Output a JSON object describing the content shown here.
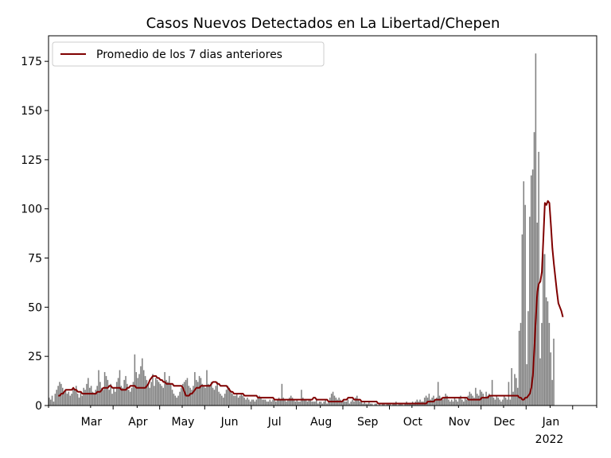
{
  "chart_data": {
    "type": "bar",
    "title": "Casos Nuevos Detectados en La Libertad/Chepen",
    "xlabel": "",
    "ylabel": "",
    "x_range": [
      "2021-02-01",
      "2022-01-31"
    ],
    "ylim": [
      0,
      188
    ],
    "y_ticks": [
      0,
      25,
      50,
      75,
      100,
      125,
      150,
      175
    ],
    "x_ticks": [
      {
        "date": "2021-03-01",
        "label": "Mar"
      },
      {
        "date": "2021-04-01",
        "label": "Apr"
      },
      {
        "date": "2021-05-01",
        "label": "May"
      },
      {
        "date": "2021-06-01",
        "label": "Jun"
      },
      {
        "date": "2021-07-01",
        "label": "Jul"
      },
      {
        "date": "2021-08-01",
        "label": "Aug"
      },
      {
        "date": "2021-09-01",
        "label": "Sep"
      },
      {
        "date": "2021-10-01",
        "label": "Oct"
      },
      {
        "date": "2021-11-01",
        "label": "Nov"
      },
      {
        "date": "2021-12-01",
        "label": "Dec"
      },
      {
        "date": "2022-01-01",
        "label": "Jan",
        "sublabel": "2022"
      }
    ],
    "grid": false,
    "legend_position": "top-left",
    "bar_series": {
      "color": "#808080",
      "start_date": "2021-02-01",
      "values": [
        4,
        3,
        5,
        2,
        6,
        8,
        10,
        12,
        11,
        9,
        7,
        8,
        6,
        7,
        5,
        6,
        9,
        8,
        10,
        6,
        4,
        7,
        5,
        9,
        8,
        11,
        14,
        9,
        10,
        7,
        6,
        8,
        10,
        18,
        12,
        9,
        8,
        17,
        15,
        13,
        8,
        11,
        6,
        9,
        7,
        12,
        14,
        18,
        10,
        9,
        13,
        15,
        11,
        8,
        7,
        9,
        12,
        26,
        17,
        14,
        16,
        20,
        24,
        18,
        15,
        13,
        11,
        9,
        12,
        16,
        10,
        14,
        13,
        12,
        11,
        10,
        9,
        17,
        13,
        12,
        15,
        11,
        8,
        6,
        5,
        4,
        5,
        7,
        9,
        11,
        12,
        13,
        14,
        10,
        9,
        8,
        10,
        17,
        13,
        12,
        15,
        14,
        11,
        10,
        9,
        18,
        11,
        10,
        12,
        9,
        8,
        10,
        12,
        7,
        6,
        5,
        4,
        6,
        8,
        10,
        9,
        7,
        6,
        5,
        5,
        6,
        4,
        5,
        6,
        5,
        4,
        3,
        4,
        3,
        2,
        3,
        3,
        2,
        3,
        4,
        5,
        4,
        3,
        3,
        3,
        2,
        2,
        3,
        2,
        3,
        3,
        2,
        3,
        4,
        3,
        11,
        4,
        3,
        2,
        3,
        4,
        5,
        4,
        3,
        2,
        3,
        2,
        2,
        8,
        4,
        3,
        3,
        2,
        3,
        3,
        2,
        2,
        2,
        3,
        1,
        2,
        2,
        1,
        2,
        3,
        1,
        2,
        4,
        6,
        7,
        5,
        4,
        3,
        4,
        3,
        2,
        3,
        2,
        2,
        3,
        1,
        2,
        3,
        2,
        4,
        5,
        3,
        2,
        2,
        1,
        2,
        1,
        1,
        2,
        1,
        1,
        0,
        1,
        1,
        0,
        1,
        0,
        1,
        1,
        0,
        1,
        1,
        1,
        0,
        1,
        1,
        2,
        0,
        1,
        1,
        1,
        0,
        1,
        2,
        1,
        1,
        1,
        2,
        1,
        2,
        3,
        2,
        3,
        2,
        2,
        4,
        5,
        4,
        6,
        3,
        4,
        5,
        3,
        4,
        12,
        5,
        4,
        3,
        4,
        6,
        5,
        3,
        2,
        3,
        2,
        4,
        3,
        2,
        4,
        5,
        3,
        2,
        4,
        3,
        5,
        7,
        6,
        5,
        4,
        9,
        6,
        5,
        8,
        7,
        6,
        4,
        7,
        5,
        6,
        5,
        13,
        4,
        3,
        5,
        4,
        3,
        2,
        3,
        5,
        4,
        3,
        12,
        3,
        19,
        7,
        16,
        14,
        9,
        38,
        42,
        87,
        114,
        102,
        21,
        48,
        96,
        117,
        120,
        139,
        179,
        93,
        129,
        24,
        42,
        77,
        77,
        55,
        53,
        42,
        27,
        13,
        34
      ]
    },
    "line_series": {
      "name": "Promedio de los 7 dias anteriores",
      "color": "#800000",
      "start_date": "2021-02-07",
      "values": [
        5,
        5,
        6,
        6,
        7,
        8,
        8,
        8,
        8,
        8,
        9,
        8,
        8,
        7,
        7,
        7,
        6,
        6,
        6,
        6,
        6,
        6,
        6,
        6,
        6,
        6,
        7,
        7,
        7,
        8,
        9,
        9,
        9,
        9,
        10,
        10,
        9,
        9,
        9,
        9,
        9,
        9,
        8,
        8,
        8,
        8,
        9,
        9,
        10,
        10,
        10,
        10,
        9,
        9,
        9,
        9,
        9,
        9,
        9,
        10,
        11,
        13,
        14,
        15,
        15,
        15,
        14,
        14,
        13,
        13,
        12,
        12,
        11,
        11,
        11,
        11,
        11,
        10,
        10,
        10,
        10,
        10,
        10,
        9,
        7,
        5,
        5,
        5,
        6,
        6,
        7,
        8,
        9,
        9,
        9,
        10,
        10,
        10,
        10,
        10,
        10,
        10,
        11,
        12,
        12,
        12,
        11,
        11,
        10,
        10,
        10,
        10,
        10,
        9,
        8,
        7,
        7,
        6,
        6,
        6,
        6,
        6,
        6,
        6,
        5,
        5,
        5,
        5,
        5,
        5,
        5,
        5,
        5,
        4,
        4,
        4,
        4,
        4,
        4,
        4,
        4,
        4,
        4,
        4,
        3,
        3,
        3,
        3,
        3,
        3,
        3,
        3,
        3,
        3,
        3,
        3,
        3,
        3,
        3,
        3,
        3,
        3,
        3,
        3,
        3,
        3,
        3,
        3,
        3,
        3,
        4,
        4,
        3,
        3,
        3,
        3,
        3,
        3,
        3,
        3,
        2,
        2,
        2,
        2,
        2,
        2,
        2,
        2,
        2,
        2,
        3,
        3,
        3,
        4,
        4,
        4,
        4,
        3,
        3,
        3,
        3,
        3,
        2,
        2,
        2,
        2,
        2,
        2,
        2,
        2,
        2,
        2,
        2,
        1,
        1,
        1,
        1,
        1,
        1,
        1,
        1,
        1,
        1,
        1,
        1,
        1,
        1,
        1,
        1,
        1,
        1,
        1,
        1,
        1,
        1,
        1,
        1,
        1,
        1,
        1,
        1,
        1,
        1,
        1,
        1,
        1,
        2,
        2,
        2,
        2,
        2,
        3,
        3,
        3,
        3,
        3,
        4,
        4,
        4,
        4,
        4,
        4,
        4,
        4,
        4,
        4,
        4,
        4,
        4,
        4,
        4,
        4,
        4,
        3,
        3,
        3,
        3,
        3,
        3,
        3,
        3,
        3,
        4,
        4,
        4,
        4,
        4,
        5,
        5,
        5,
        5,
        5,
        5,
        5,
        5,
        5,
        5,
        5,
        5,
        5,
        5,
        5,
        5,
        5,
        5,
        5,
        5,
        4,
        4,
        3,
        3,
        4,
        4,
        5,
        6,
        9,
        15,
        29,
        45,
        58,
        62,
        63,
        68,
        85,
        103,
        102,
        104,
        103,
        92,
        80,
        72,
        65,
        58,
        52,
        50,
        48,
        45
      ]
    }
  }
}
